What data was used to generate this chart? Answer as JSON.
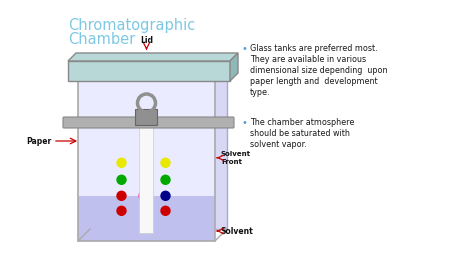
{
  "title_line1": "Chromatographic",
  "title_line2": "Chamber",
  "title_color": "#7ec8e3",
  "bg_color": "#ffffff",
  "bullet1_line1": "Glass tanks are preferred most.",
  "bullet1_line2": "They are available in various",
  "bullet1_line3": "dimensional size depending  upon",
  "bullet1_line4": "paper length and  development",
  "bullet1_line5": "type.",
  "bullet2_line1": "The chamber atmosphere",
  "bullet2_line2": "should be saturated with",
  "bullet2_line3": "solvent vapor.",
  "bullet_color": "#1a1a1a",
  "bullet_dot_color": "#5b9bd5",
  "label_lid": "Lid",
  "label_paper": "Paper",
  "label_solvent_front": "Solvent\nFront",
  "label_solvent": "Solvent",
  "label_color": "#111111",
  "arrow_color": "#cc0000",
  "chamber_wall_color": "#aaaaaa",
  "chamber_interior_color": "#ebebff",
  "chamber_back_color": "#d8d8f5",
  "solvent_color": "#c0c0ee",
  "lid_top_color": "#b8d8d8",
  "lid_side_color": "#90b8b8",
  "lid_border_color": "#888888",
  "rod_color": "#b0b0b0",
  "rod_border_color": "#888888",
  "clip_body_color": "#909090",
  "clip_grip_color": "#b0b0b0",
  "paper_color": "#f8f8f8",
  "paper_border_color": "#cccccc",
  "dot_yellow": "#e8e800",
  "dot_green": "#00aa00",
  "dot_red": "#cc0000",
  "dot_pink": "#ee44aa",
  "dot_blue": "#1133cc",
  "dot_darkblue": "#000088"
}
